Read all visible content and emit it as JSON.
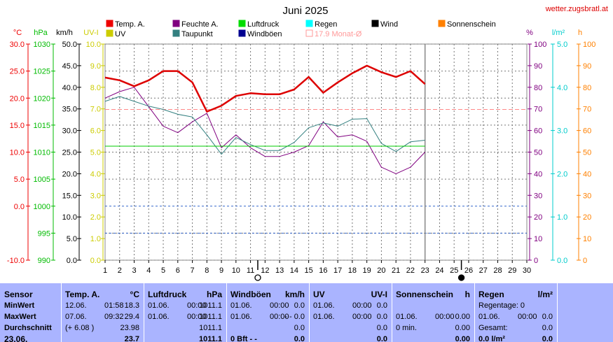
{
  "header": {
    "title": "Juni 2025",
    "site": "wetter.zugsbratl.at"
  },
  "legend": [
    {
      "label": "Temp. A.",
      "color": "#ee0000"
    },
    {
      "label": "Feuchte A.",
      "color": "#800080"
    },
    {
      "label": "Luftdruck",
      "color": "#00dd00"
    },
    {
      "label": "Regen",
      "color": "#00ffff"
    },
    {
      "label": "Wind",
      "color": "#000000"
    },
    {
      "label": "Sonnenschein",
      "color": "#ff8000"
    },
    {
      "label": "UV",
      "color": "#cccc00"
    },
    {
      "label": "Taupunkt",
      "color": "#338080"
    },
    {
      "label": "Windböen",
      "color": "#000090"
    },
    {
      "label": "17.9 Monat-Ø",
      "color": "#ff9999"
    }
  ],
  "axis_units": {
    "temp": "°C",
    "pressure": "hPa",
    "wind": "km/h",
    "uv": "UV-I",
    "humidity": "%",
    "rain": "l/m²",
    "sun": "h"
  },
  "chart_data": {
    "type": "line",
    "x": [
      1,
      2,
      3,
      4,
      5,
      6,
      7,
      8,
      9,
      10,
      11,
      12,
      13,
      14,
      15,
      16,
      17,
      18,
      19,
      20,
      21,
      22,
      23
    ],
    "x_ticks": [
      1,
      2,
      3,
      4,
      5,
      6,
      7,
      8,
      9,
      10,
      11,
      12,
      13,
      14,
      15,
      16,
      17,
      18,
      19,
      20,
      21,
      22,
      23,
      24,
      25,
      26,
      27,
      28,
      29,
      30
    ],
    "xlim": [
      1,
      30
    ],
    "axes": {
      "temp": {
        "ticks": [
          "30.0",
          "25.0",
          "20.0",
          "15.0",
          "10.0",
          "5.0",
          "0.0",
          "-10.0"
        ],
        "range": [
          -10,
          30
        ],
        "color": "#ee0000"
      },
      "pressure": {
        "ticks": [
          "1030",
          "1025",
          "1020",
          "1015",
          "1010",
          "1005",
          "1000",
          "995",
          "990"
        ],
        "range": [
          990,
          1030
        ],
        "color": "#00bb00"
      },
      "wind": {
        "ticks": [
          "50.0",
          "45.0",
          "40.0",
          "35.0",
          "30.0",
          "25.0",
          "20.0",
          "15.0",
          "10.0",
          "5.0",
          "0.0"
        ],
        "range": [
          0,
          50
        ],
        "color": "#000000"
      },
      "uv": {
        "ticks": [
          "10.0",
          "9.0",
          "8.0",
          "7.0",
          "6.0",
          "5.0",
          "4.0",
          "3.0",
          "2.0",
          "1.0",
          "0.0"
        ],
        "range": [
          0,
          10
        ],
        "color": "#cccc00"
      },
      "humidity": {
        "ticks": [
          "100",
          "90",
          "80",
          "70",
          "60",
          "50",
          "40",
          "30",
          "20",
          "10",
          "0"
        ],
        "range": [
          0,
          100
        ],
        "color": "#800080"
      },
      "rain": {
        "ticks": [
          "5.0",
          "4.0",
          "3.0",
          "2.0",
          "1.0",
          "0.0"
        ],
        "range": [
          0,
          5
        ],
        "color": "#00cccc"
      },
      "sun": {
        "ticks": [
          "100",
          "90",
          "80",
          "70",
          "60",
          "50",
          "40",
          "30",
          "20",
          "10",
          "0"
        ],
        "range": [
          0,
          100
        ],
        "color": "#ff8000"
      }
    },
    "monthly_mean_temp": 17.9,
    "series": [
      {
        "name": "Temp. A.",
        "axis": "temp",
        "color": "#dd0000",
        "width": 2.5,
        "values": [
          23.8,
          23.3,
          22.2,
          23.3,
          25.0,
          25.0,
          22.9,
          17.5,
          18.6,
          20.4,
          20.9,
          20.7,
          20.7,
          21.6,
          23.9,
          21.0,
          22.9,
          24.6,
          26.0,
          24.8,
          23.9,
          25.0,
          22.6
        ]
      },
      {
        "name": "Feuchte A.",
        "axis": "humidity",
        "color": "#800080",
        "width": 1,
        "values": [
          75,
          78,
          80,
          71,
          62,
          59,
          64,
          68,
          52,
          58,
          52,
          48,
          48,
          50,
          53,
          64,
          57,
          58,
          55,
          43,
          40,
          43,
          50
        ]
      },
      {
        "name": "Taupunkt",
        "axis": "temp",
        "color": "#338080",
        "width": 1,
        "values": [
          19.4,
          20.3,
          19.4,
          18.5,
          17.9,
          17.0,
          16.5,
          13.2,
          9.6,
          12.7,
          11.4,
          10.3,
          10.3,
          11.8,
          14.5,
          15.4,
          14.8,
          16.1,
          16.2,
          11.6,
          10.1,
          11.9,
          12.2
        ]
      },
      {
        "name": "Luftdruck",
        "axis": "pressure",
        "color": "#00cc00",
        "width": 1,
        "values": [
          1011.1,
          1011.1,
          1011.1,
          1011.1,
          1011.1,
          1011.1,
          1011.1,
          1011.1,
          1011.1,
          1011.1,
          1011.1,
          1011.1,
          1011.1,
          1011.1,
          1011.1,
          1011.1,
          1011.1,
          1011.1,
          1011.1,
          1011.1,
          1011.1,
          1011.1,
          1011.1
        ]
      }
    ],
    "markers": [
      {
        "x": 11.5,
        "style": "open"
      },
      {
        "x": 25.5,
        "style": "filled"
      }
    ]
  },
  "table": {
    "row_labels": [
      "Sensor",
      "MinWert",
      "MaxWert",
      "Durchschnitt",
      "23.06."
    ],
    "temp": {
      "title": "Temp. A.",
      "unit": "°C",
      "rows": [
        [
          "12.06.",
          "01:58",
          "18.3"
        ],
        [
          "07.06.",
          "09:32",
          "29.4"
        ],
        [
          "(+ 6.08 )",
          "",
          "23.98"
        ],
        [
          "",
          "",
          "23.7"
        ]
      ]
    },
    "pressure": {
      "title": "Luftdruck",
      "unit": "hPa",
      "rows": [
        [
          "01.06.",
          "00:00",
          "1011.1"
        ],
        [
          "01.06.",
          "00:00",
          "1011.1"
        ],
        [
          "",
          "",
          "1011.1"
        ],
        [
          "",
          "",
          "1011.1"
        ]
      ]
    },
    "gust": {
      "title": "Windböen",
      "unit": "km/h",
      "rows": [
        [
          "01.06.",
          "00:00",
          "0.0"
        ],
        [
          "01.06.",
          "00:00",
          "- - 0.0"
        ],
        [
          "",
          "",
          "0.0"
        ],
        [
          "0 Bft - -",
          "",
          "0.0"
        ]
      ]
    },
    "uv": {
      "title": "UV",
      "unit": "UV-I",
      "rows": [
        [
          "01.06.",
          "00:00",
          "0.0"
        ],
        [
          "01.06.",
          "00:00",
          "0.0"
        ],
        [
          "",
          "",
          "0.0"
        ],
        [
          "",
          "",
          "0.0"
        ]
      ]
    },
    "sun": {
      "title": "Sonnenschein",
      "unit": "h",
      "rows": [
        [
          "",
          "",
          ""
        ],
        [
          "01.06.",
          "00:00",
          "0.00"
        ],
        [
          "0 min.",
          "",
          "0.00"
        ],
        [
          "",
          "",
          "0.00"
        ]
      ]
    },
    "rain": {
      "title": "Regen",
      "unit": "l/m²",
      "rows": [
        [
          "Regentage: 0",
          "",
          ""
        ],
        [
          "01.06.",
          "00:00",
          "0.0"
        ],
        [
          "Gesamt:",
          "",
          "0.0"
        ],
        [
          "0.0 l/m²",
          "",
          "0.0"
        ]
      ]
    }
  }
}
